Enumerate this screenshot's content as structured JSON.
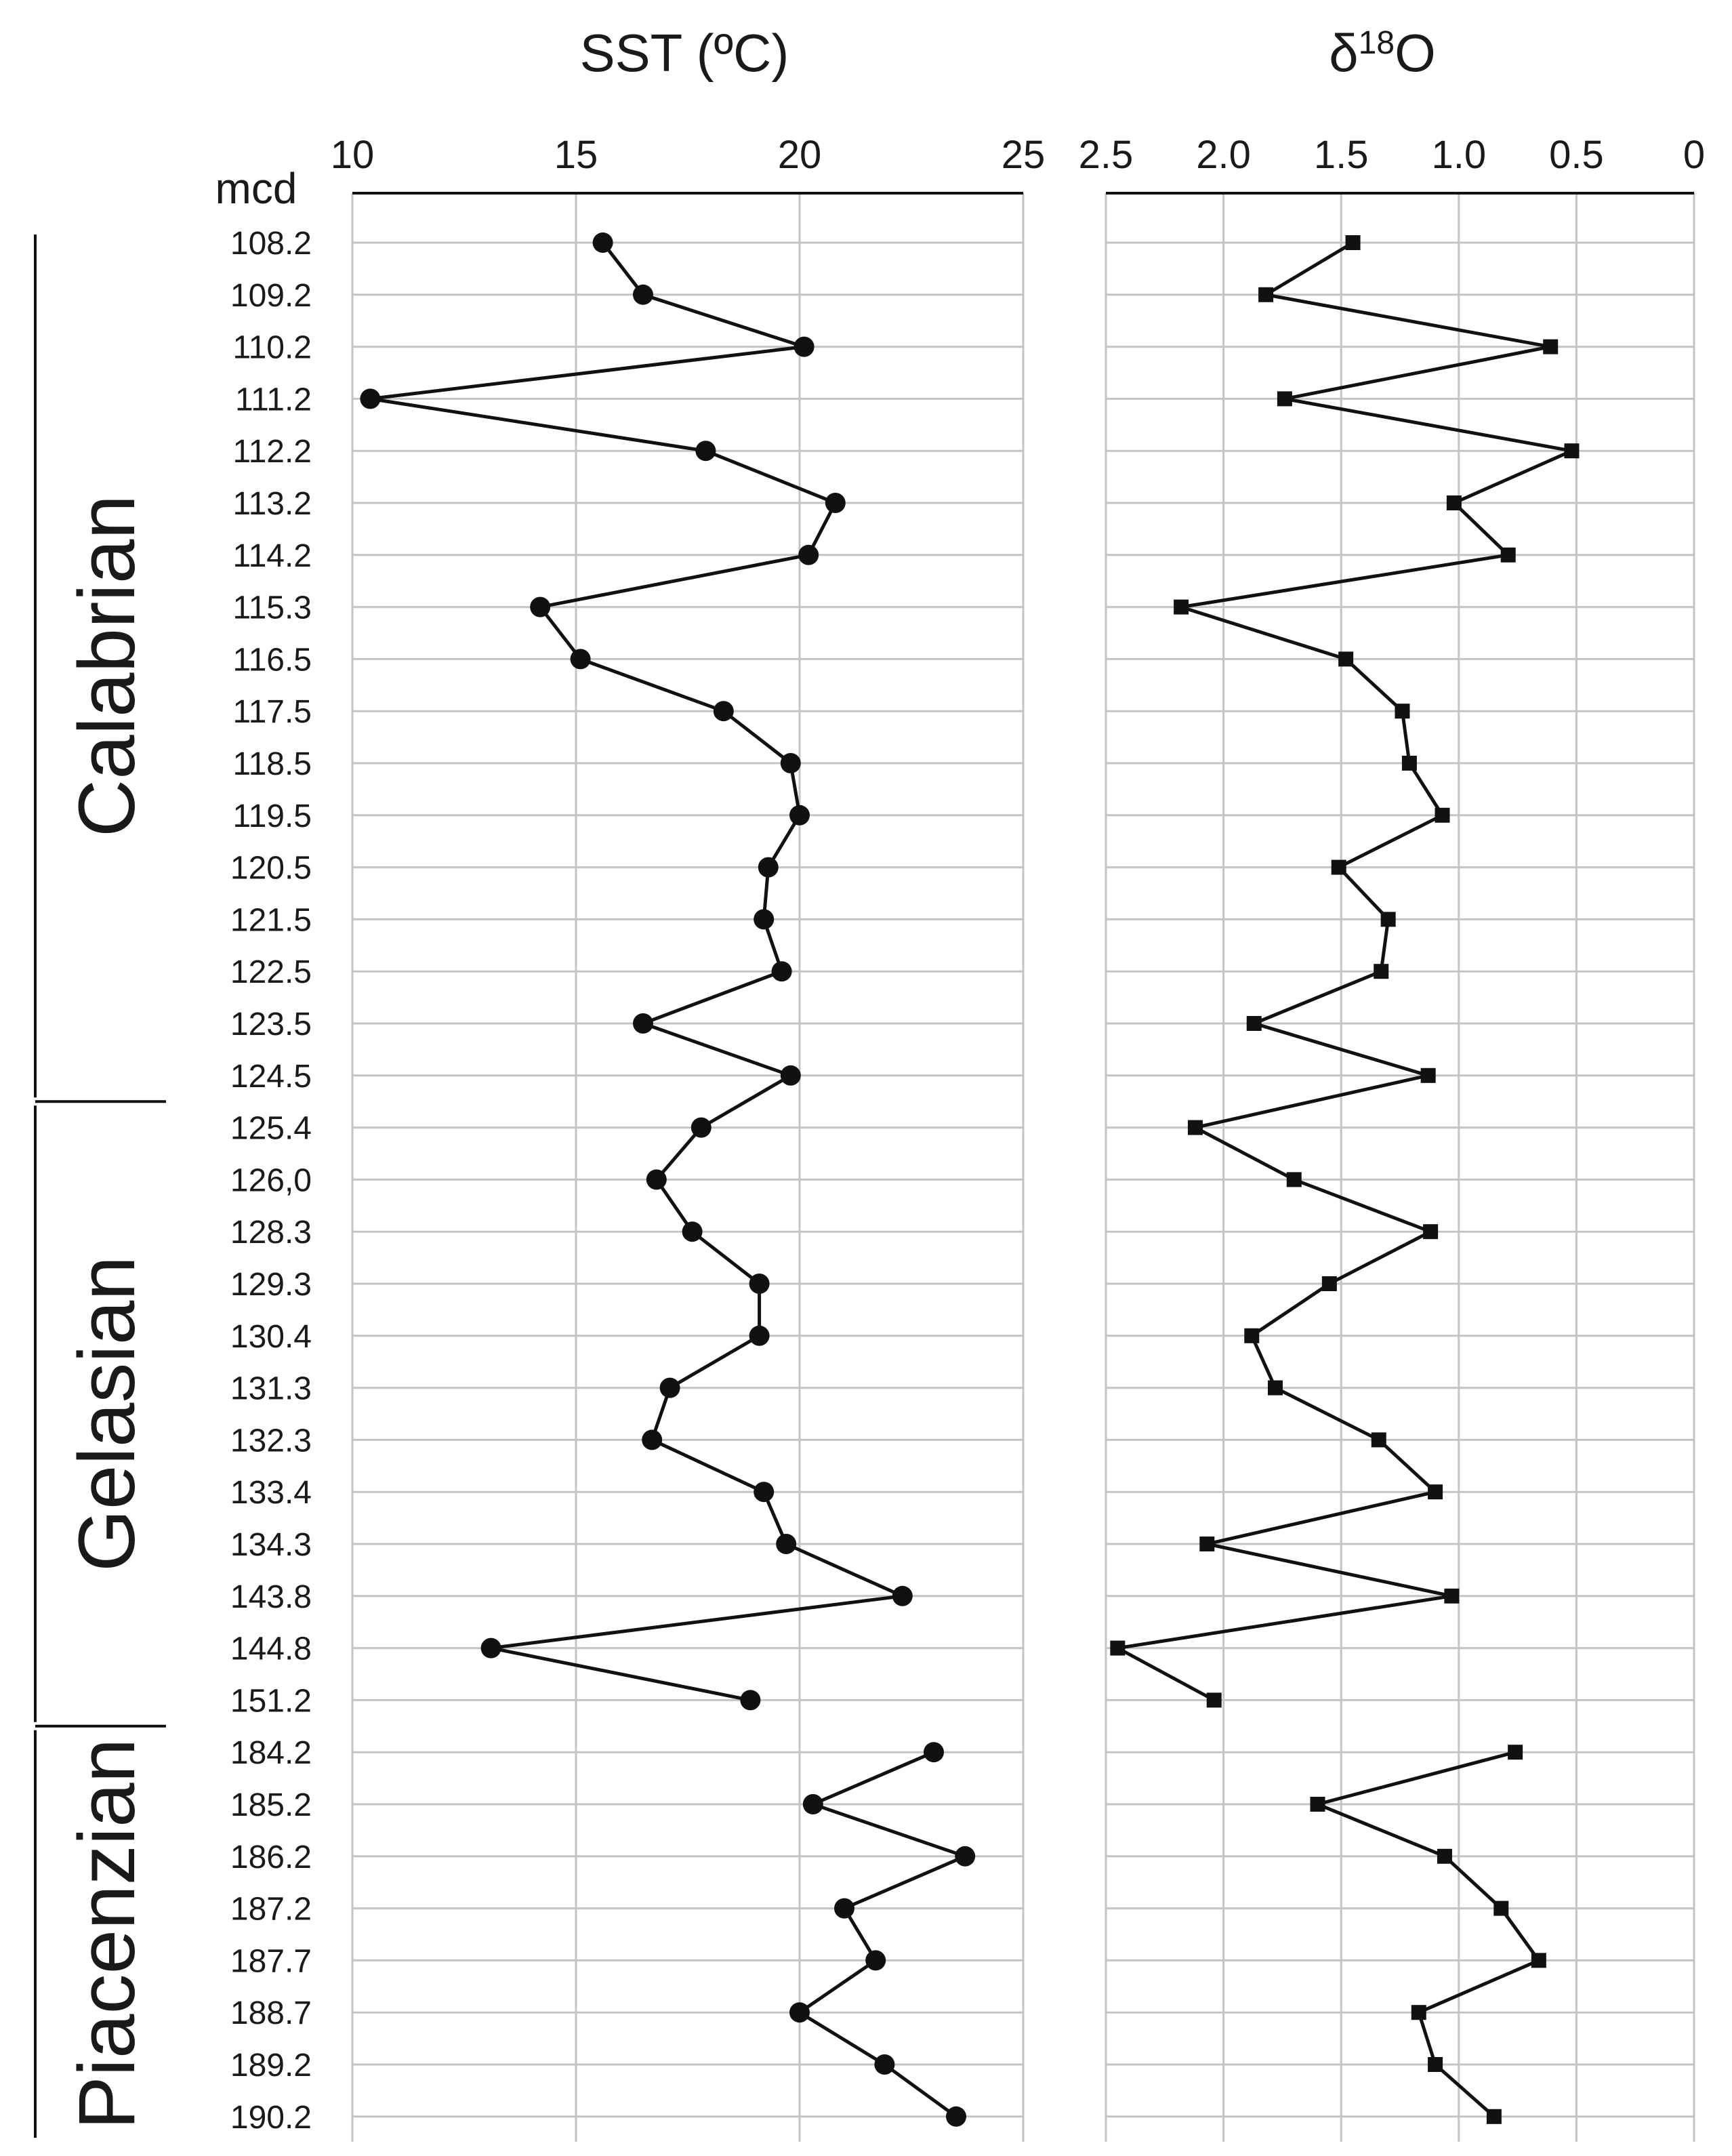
{
  "chart_data": [
    {
      "type": "line",
      "title": "SST (ºC)",
      "ylabel": "mcd",
      "xlim": [
        10,
        25
      ],
      "xticks": [
        10,
        15,
        20,
        25
      ],
      "grid": true,
      "marker": "circle",
      "ycategories": [
        "108.2",
        "109.2",
        "110.2",
        "111.2",
        "112.2",
        "113.2",
        "114.2",
        "115.3",
        "116.5",
        "117.5",
        "118.5",
        "119.5",
        "120.5",
        "121.5",
        "122.5",
        "123.5",
        "124.5",
        "125.4",
        "126,0",
        "128.3",
        "129.3",
        "130.4",
        "131.3",
        "132.3",
        "133.4",
        "134.3",
        "143.8",
        "144.8",
        "151.2",
        "184.2",
        "185.2",
        "186.2",
        "187.2",
        "187.7",
        "188.7",
        "189.2",
        "190.2"
      ],
      "segments": [
        {
          "start": 0,
          "values": [
            15.6,
            16.5,
            20.1,
            10.4,
            17.9,
            20.8,
            20.2,
            14.2,
            15.1,
            18.3,
            19.8,
            20.0,
            19.3,
            19.2,
            19.6,
            16.5,
            19.8,
            17.8,
            16.8,
            17.6,
            19.1,
            19.1,
            17.1,
            16.7,
            19.2,
            19.7,
            22.3,
            13.1,
            18.9
          ]
        },
        {
          "start": 29,
          "values": [
            23.0,
            20.3,
            23.7,
            21.0,
            21.7,
            20.0,
            21.9,
            23.5
          ]
        }
      ]
    },
    {
      "type": "line",
      "title": "δ",
      "title_sup": "18",
      "title_tail": "O",
      "xlim": [
        2.5,
        0
      ],
      "xticks": [
        "2.5",
        "2.0",
        "1.5",
        "1.0",
        "0.5",
        "0"
      ],
      "grid": true,
      "marker": "square",
      "segments": [
        {
          "start": 0,
          "values": [
            1.45,
            1.82,
            0.61,
            1.74,
            0.52,
            1.02,
            0.79,
            2.18,
            1.48,
            1.24,
            1.21,
            1.07,
            1.51,
            1.3,
            1.33,
            1.87,
            1.13,
            2.12,
            1.7,
            1.12,
            1.55,
            1.88,
            1.78,
            1.34,
            1.1,
            2.07,
            1.03,
            2.45,
            2.04
          ]
        },
        {
          "start": 29,
          "values": [
            0.76,
            1.6,
            1.06,
            0.82,
            0.66,
            1.17,
            1.1,
            0.85
          ]
        }
      ]
    }
  ],
  "stages": [
    {
      "name": "Calabrian",
      "from": 0,
      "to": 16
    },
    {
      "name": "Gelasian",
      "from": 17,
      "to": 28
    },
    {
      "name": "Piacenzian",
      "from": 29,
      "to": 36
    }
  ]
}
